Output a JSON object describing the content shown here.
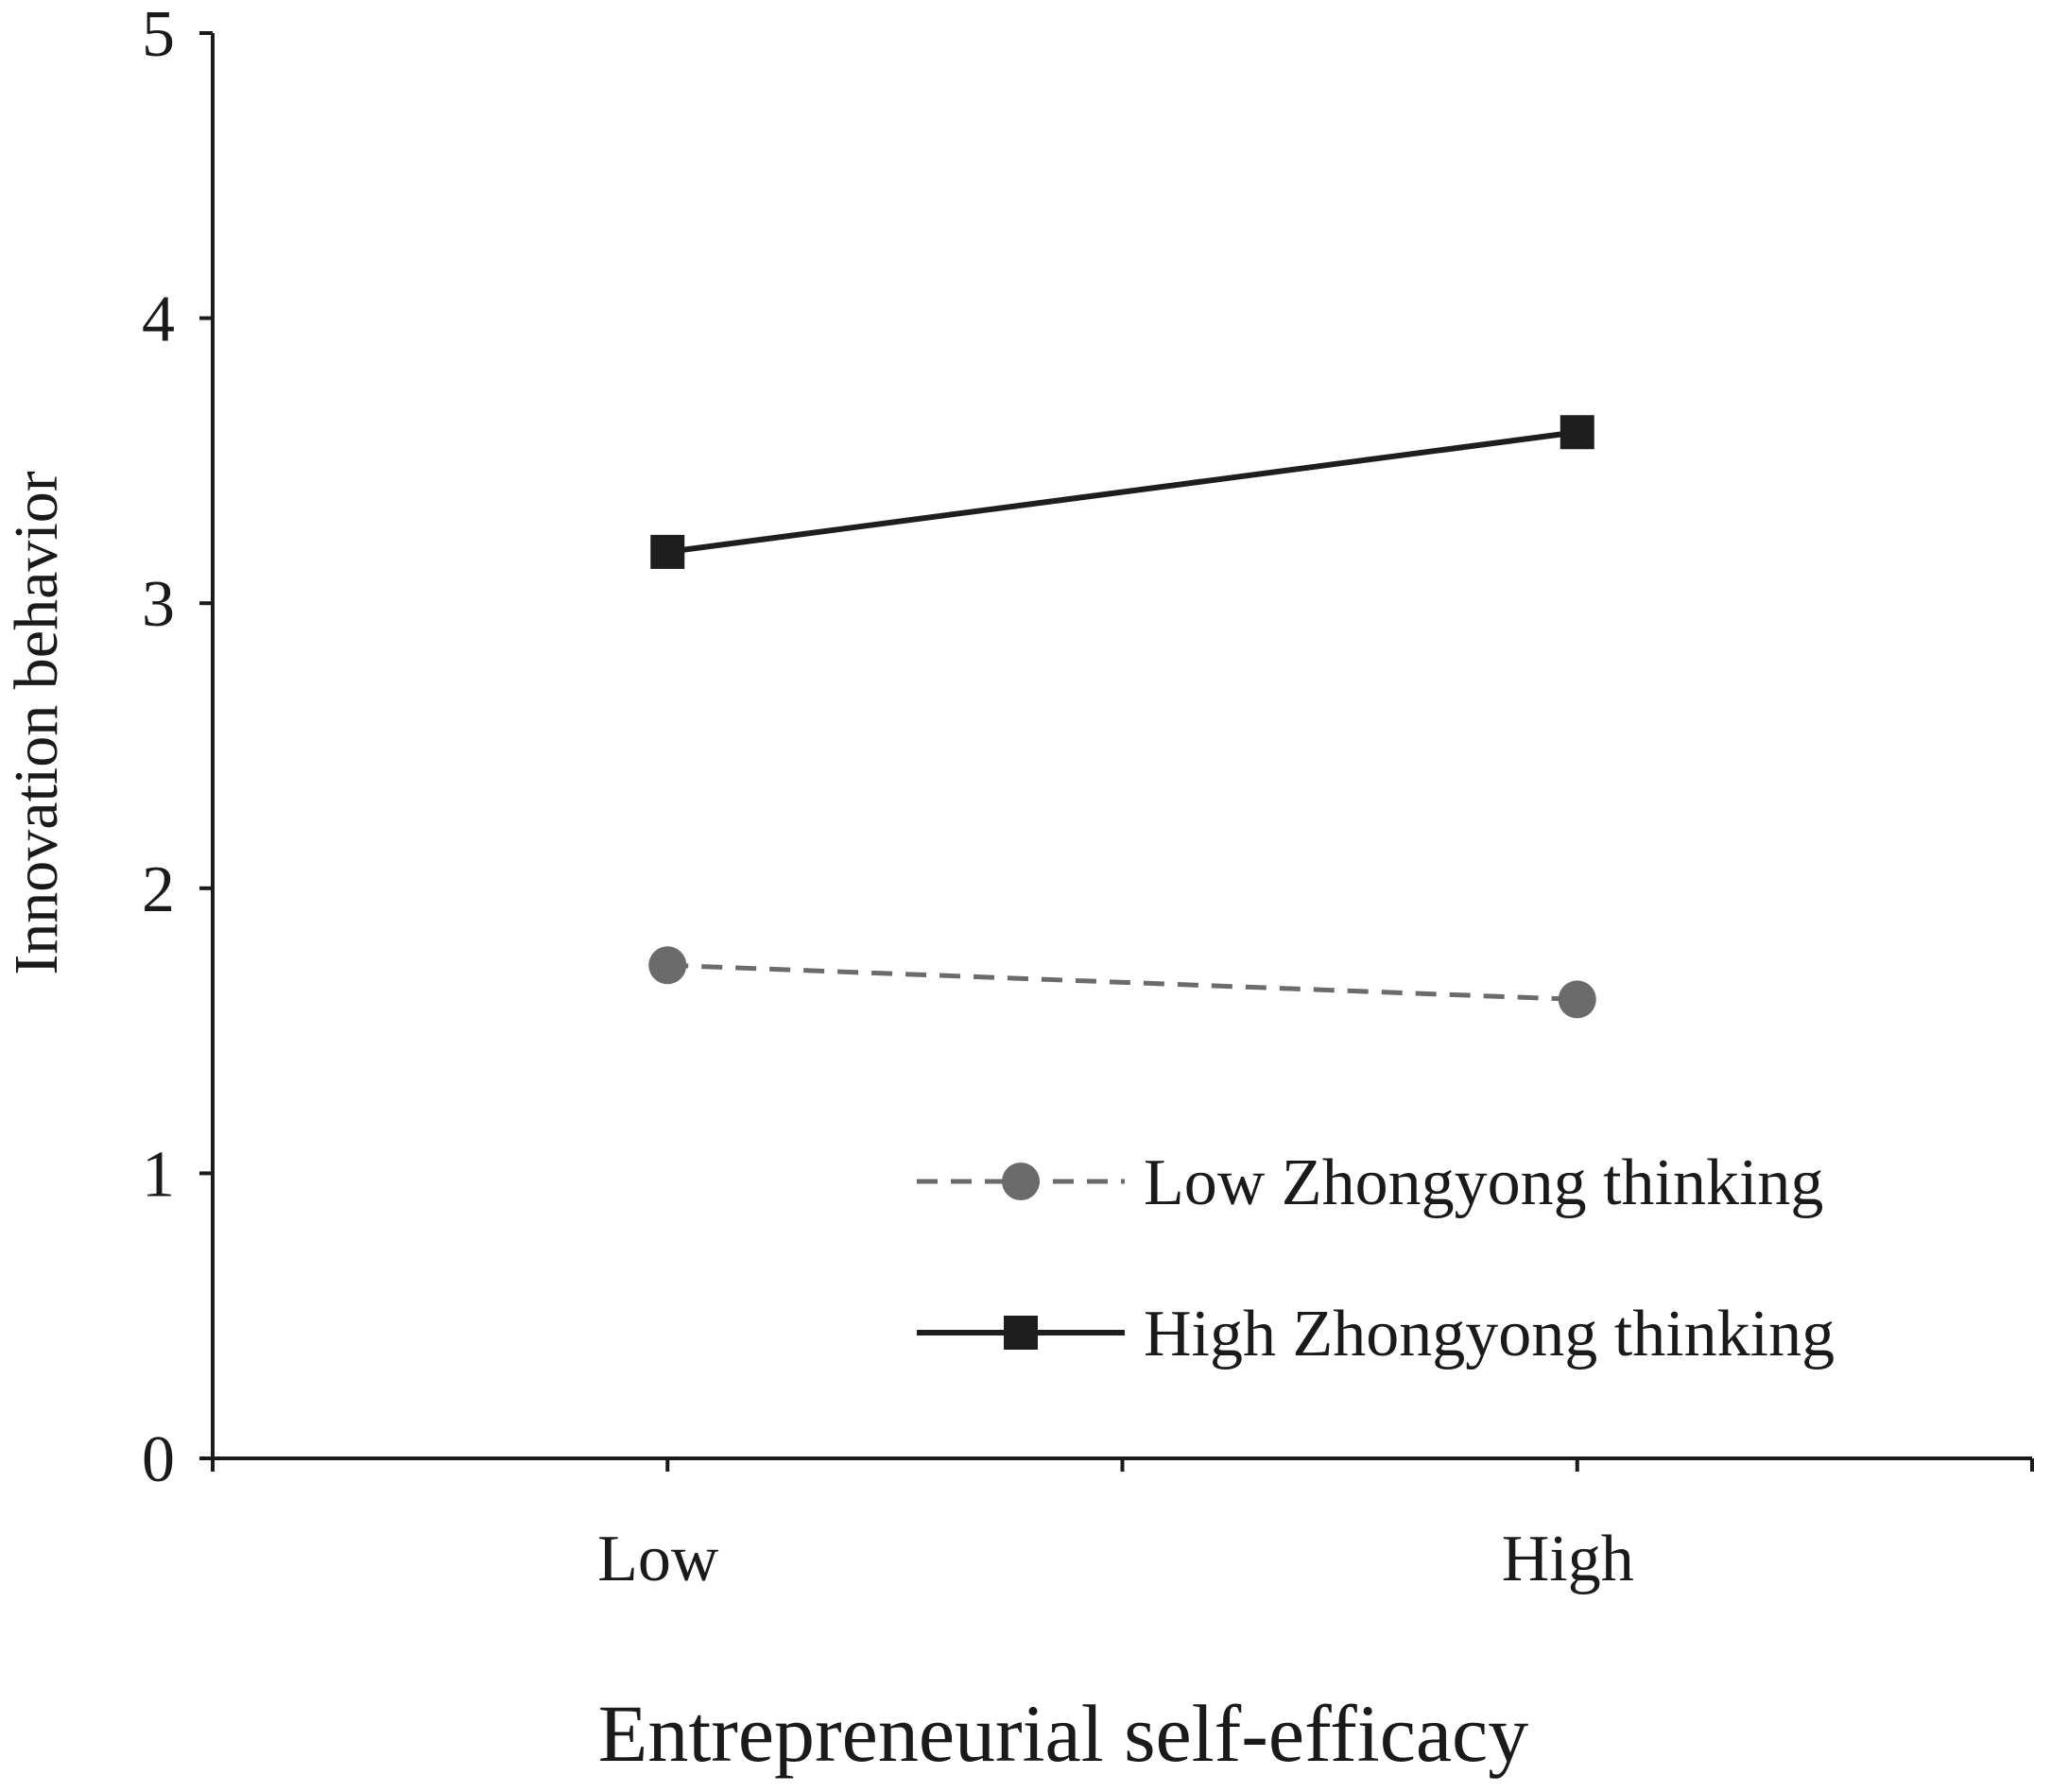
{
  "chart_data": {
    "type": "line",
    "xlabel": "Entrepreneurial self-efficacy",
    "ylabel": "Innovation behavior",
    "categories": [
      "Low",
      "High"
    ],
    "ylim": [
      0,
      5
    ],
    "yticks": [
      "0",
      "1",
      "2",
      "3",
      "4",
      "5"
    ],
    "grid": false,
    "legend_position": "bottom-right",
    "series": [
      {
        "name": "Low Zhongyong thinking",
        "values": [
          1.73,
          1.61
        ],
        "line_style": "dashed",
        "marker": "circle",
        "color": "#6b6b6b"
      },
      {
        "name": "High Zhongyong thinking",
        "values": [
          3.18,
          3.6
        ],
        "line_style": "solid",
        "marker": "square",
        "color": "#1e1e1e"
      }
    ]
  }
}
